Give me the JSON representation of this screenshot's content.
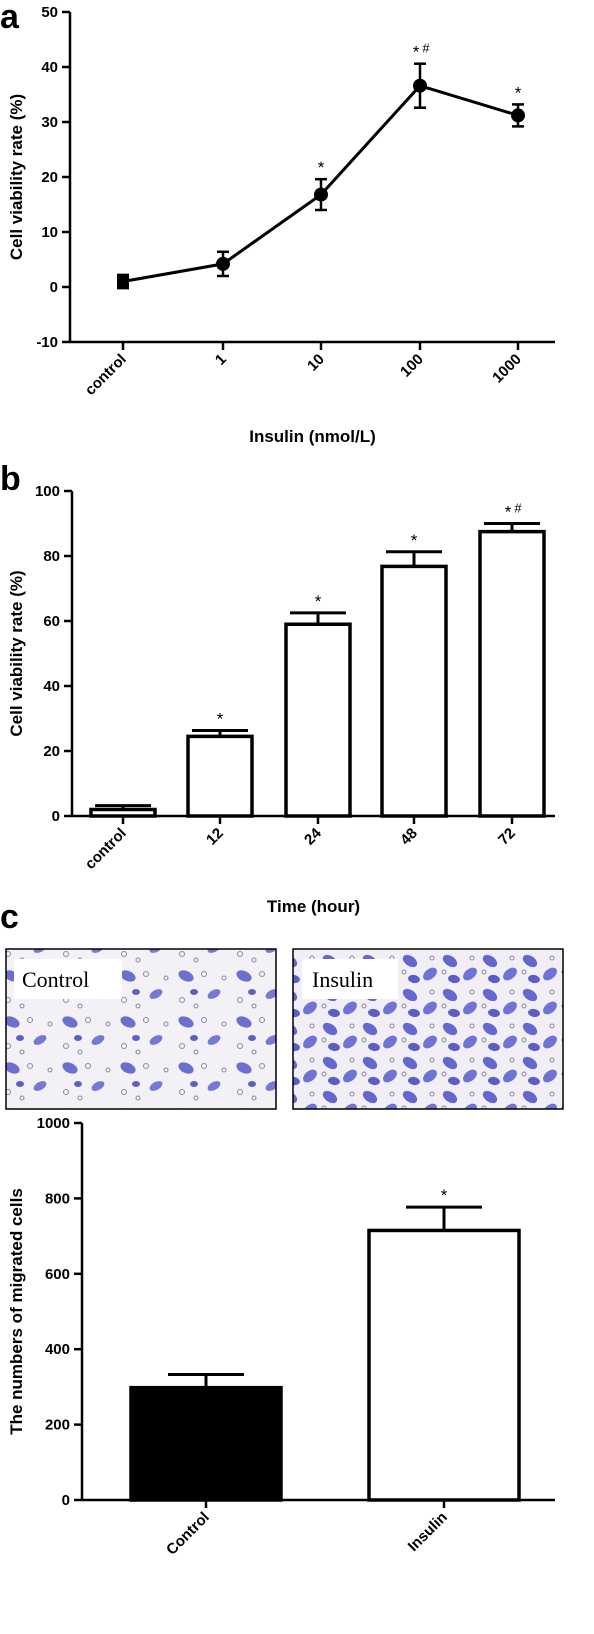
{
  "panels": {
    "a": "a",
    "b": "b",
    "c": "c"
  },
  "images": {
    "left_label": "Control",
    "right_label": "Insulin",
    "cell_color": "#6a6fd0",
    "background_color": "#f1eef5"
  },
  "chart_data": [
    {
      "type": "line",
      "categories": [
        "control",
        "1",
        "10",
        "100",
        "1000"
      ],
      "series": [
        {
          "values": [
            1,
            4.2,
            16.8,
            36.6,
            31.2
          ],
          "errors": [
            1.2,
            2.2,
            2.8,
            4.0,
            2.0
          ]
        }
      ],
      "annotations": [
        "",
        "",
        "*",
        "*#",
        "*"
      ],
      "xlabel": "Insulin (nmol/L)",
      "ylabel": "Cell viability rate (%)",
      "ylim": [
        -10,
        50
      ],
      "yticks": [
        -10,
        0,
        10,
        20,
        30,
        40,
        50
      ],
      "grid": false,
      "color": "#000000"
    },
    {
      "type": "bar",
      "categories": [
        "control",
        "12",
        "24",
        "48",
        "72"
      ],
      "series": [
        {
          "values": [
            2,
            24.5,
            59,
            76.8,
            87.5
          ],
          "errors": [
            1.2,
            1.8,
            3.5,
            4.5,
            2.5
          ]
        }
      ],
      "annotations": [
        "",
        "*",
        "*",
        "*",
        "*#"
      ],
      "xlabel": "Time (hour)",
      "ylabel": "Cell viability rate (%)",
      "ylim": [
        0,
        100
      ],
      "yticks": [
        0,
        20,
        40,
        60,
        80,
        100
      ],
      "grid": false,
      "bar_fill": "#ffffff"
    },
    {
      "type": "bar",
      "categories": [
        "Control",
        "Insulin"
      ],
      "series": [
        {
          "values": [
            298,
            715
          ],
          "errors": [
            35,
            62
          ]
        }
      ],
      "annotations": [
        "",
        "*"
      ],
      "xlabel": "",
      "ylabel": "The numbers of migrated cells",
      "ylim": [
        0,
        1000
      ],
      "yticks": [
        0,
        200,
        400,
        600,
        800,
        1000
      ],
      "grid": false,
      "bar_fills": [
        "#000000",
        "#ffffff"
      ]
    }
  ]
}
